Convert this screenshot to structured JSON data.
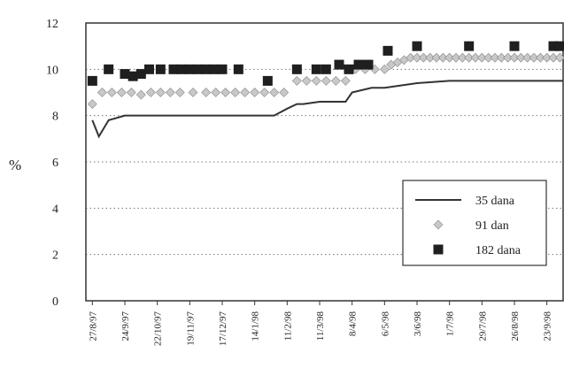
{
  "chart_data": {
    "type": "line",
    "ylabel": "%",
    "ylim": [
      0,
      12
    ],
    "yticks": [
      0,
      2,
      4,
      6,
      8,
      10,
      12
    ],
    "grid": "horizontal-dotted",
    "legend_position": "lower-right",
    "x_ticks": [
      "27/8/97",
      "24/9/97",
      "22/10/97",
      "19/11/97",
      "17/12/97",
      "14/1/98",
      "11/2/98",
      "11/3/98",
      "8/4/98",
      "6/5/98",
      "3/6/98",
      "1/7/98",
      "29/7/98",
      "26/8/98",
      "23/9/98"
    ],
    "series": [
      {
        "name": "35 dana",
        "style": "line",
        "color": "#333333",
        "x": [
          0,
          0.2,
          0.5,
          1,
          2,
          3,
          4,
          5,
          5.3,
          5.6,
          6,
          6.3,
          6.5,
          7,
          7.5,
          7.8,
          8,
          8.3,
          8.6,
          9,
          9.5,
          10,
          11,
          12,
          13,
          14,
          14.5
        ],
        "values": [
          7.8,
          7.1,
          7.8,
          8.0,
          8.0,
          8.0,
          8.0,
          8.0,
          8.0,
          8.0,
          8.3,
          8.5,
          8.5,
          8.6,
          8.6,
          8.6,
          9.0,
          9.1,
          9.2,
          9.2,
          9.3,
          9.4,
          9.5,
          9.5,
          9.5,
          9.5,
          9.5
        ]
      },
      {
        "name": "91 dan",
        "style": "diamond",
        "color": "#c8c8c8",
        "x": [
          0,
          0.3,
          0.6,
          0.9,
          1.2,
          1.5,
          1.8,
          2.1,
          2.4,
          2.7,
          3.1,
          3.5,
          3.8,
          4.1,
          4.4,
          4.7,
          5.0,
          5.3,
          5.6,
          5.9,
          6.3,
          6.6,
          6.9,
          7.2,
          7.5,
          7.8,
          8.1,
          8.4,
          8.7,
          9.0,
          9.2,
          9.4,
          9.6,
          9.8,
          10.0,
          10.2,
          10.4,
          10.6,
          10.8,
          11.0,
          11.2,
          11.4,
          11.6,
          11.8,
          12.0,
          12.2,
          12.4,
          12.6,
          12.8,
          13.0,
          13.2,
          13.4,
          13.6,
          13.8,
          14.0,
          14.2,
          14.4
        ],
        "values": [
          8.5,
          9.0,
          9.0,
          9.0,
          9.0,
          8.9,
          9.0,
          9.0,
          9.0,
          9.0,
          9.0,
          9.0,
          9.0,
          9.0,
          9.0,
          9.0,
          9.0,
          9.0,
          9.0,
          9.0,
          9.5,
          9.5,
          9.5,
          9.5,
          9.5,
          9.5,
          10.0,
          10.0,
          10.0,
          10.0,
          10.2,
          10.3,
          10.4,
          10.5,
          10.5,
          10.5,
          10.5,
          10.5,
          10.5,
          10.5,
          10.5,
          10.5,
          10.5,
          10.5,
          10.5,
          10.5,
          10.5,
          10.5,
          10.5,
          10.5,
          10.5,
          10.5,
          10.5,
          10.5,
          10.5,
          10.5,
          10.5
        ]
      },
      {
        "name": "182 dana",
        "style": "square",
        "color": "#1f1f1f",
        "x": [
          0,
          0.5,
          1.0,
          1.25,
          1.5,
          1.75,
          2.1,
          2.5,
          2.75,
          3.0,
          3.25,
          3.5,
          3.75,
          4.0,
          4.5,
          5.4,
          6.3,
          6.9,
          7.2,
          7.6,
          7.9,
          8.2,
          8.5,
          9.1,
          10.0,
          11.6,
          13.0,
          14.2,
          14.4
        ],
        "values": [
          9.5,
          10.0,
          9.8,
          9.7,
          9.8,
          10.0,
          10.0,
          10.0,
          10.0,
          10.0,
          10.0,
          10.0,
          10.0,
          10.0,
          10.0,
          9.5,
          10.0,
          10.0,
          10.0,
          10.2,
          10.0,
          10.2,
          10.2,
          10.8,
          11.0,
          11.0,
          11.0,
          11.0,
          11.0
        ]
      }
    ]
  }
}
